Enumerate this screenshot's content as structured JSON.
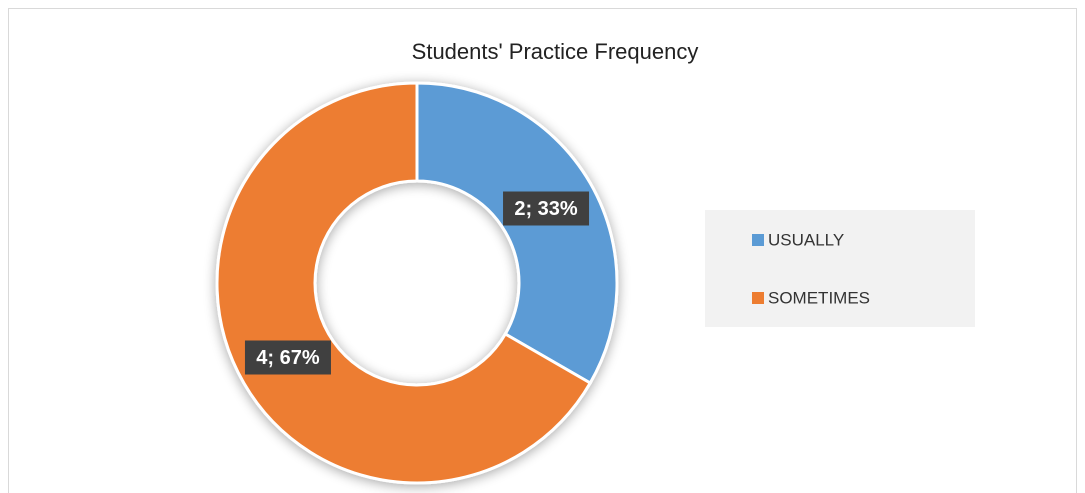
{
  "chart_data": {
    "type": "doughnut",
    "title": "Students' Practice Frequency",
    "categories": [
      "USUALLY",
      "SOMETIMES"
    ],
    "values": [
      2,
      4
    ],
    "value_labels": [
      "2; 33%",
      "4; 67%"
    ],
    "colors": [
      "#5b9bd5",
      "#ed7d31"
    ],
    "legend": "right"
  }
}
